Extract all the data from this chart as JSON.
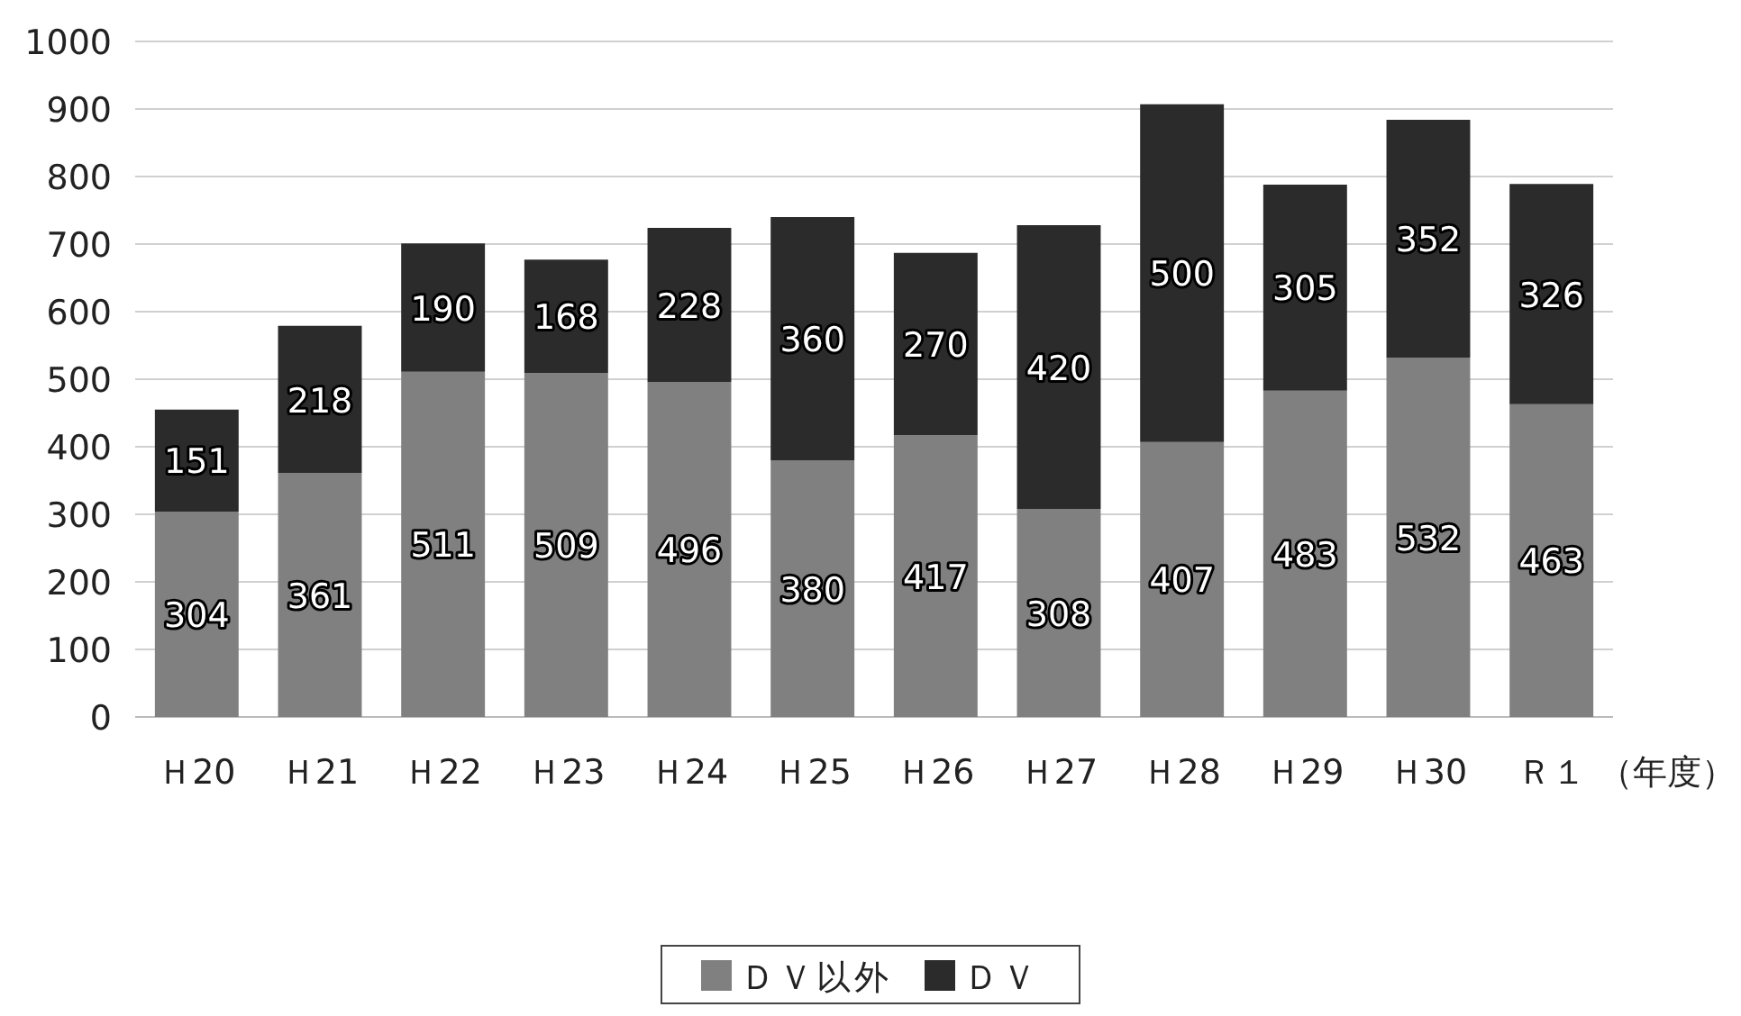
{
  "chart_data": {
    "type": "bar",
    "stacked": true,
    "xlabel": "（年度）",
    "categories": [
      "Ｈ20",
      "Ｈ21",
      "Ｈ22",
      "Ｈ23",
      "Ｈ24",
      "Ｈ25",
      "Ｈ26",
      "Ｈ27",
      "Ｈ28",
      "Ｈ29",
      "Ｈ30",
      "Ｒ１"
    ],
    "series": [
      {
        "name": "ＤＶ以外",
        "color": "#808080",
        "values": [
          304,
          361,
          511,
          509,
          496,
          380,
          417,
          308,
          407,
          483,
          532,
          463
        ]
      },
      {
        "name": "ＤＶ",
        "color": "#2b2b2b",
        "values": [
          151,
          218,
          190,
          168,
          228,
          360,
          270,
          420,
          500,
          305,
          352,
          326
        ]
      }
    ],
    "ylim": [
      0,
      1000
    ],
    "yticks": [
      0,
      100,
      200,
      300,
      400,
      500,
      600,
      700,
      800,
      900,
      1000
    ],
    "grid": "y",
    "data_labels": true,
    "legend": "bottom"
  }
}
